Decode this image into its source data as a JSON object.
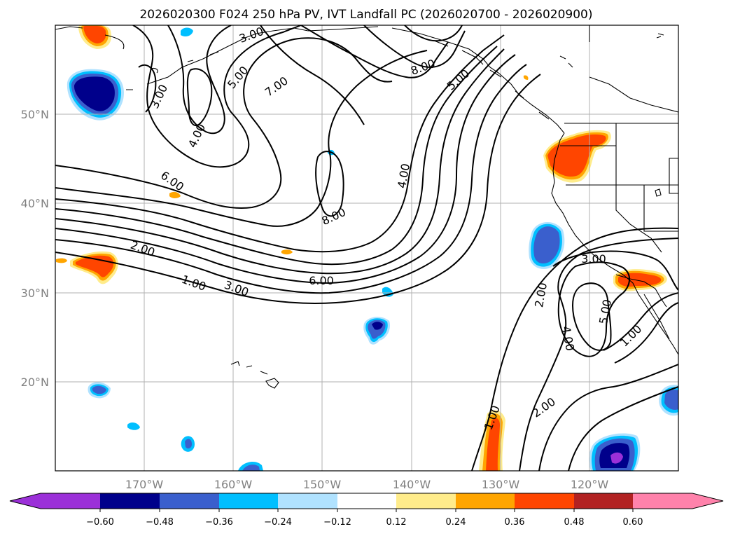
{
  "title": "2026020300 F024 250 hPa PV, IVT Landfall PC (2026020700 - 2026020900)",
  "map": {
    "projection": "PlateCarree",
    "lon_range": [
      -180,
      -110
    ],
    "lat_range": [
      10,
      60
    ],
    "gridlines": true,
    "lat_labels": [
      "50°N",
      "40°N",
      "30°N",
      "20°N"
    ],
    "lon_labels": [
      "170°W",
      "160°W",
      "150°W",
      "140°W",
      "130°W",
      "120°W"
    ]
  },
  "contour_labels": [
    "3.00",
    "5.00",
    "7.00",
    "8.00",
    "5.00",
    "3.00",
    "4.00",
    "6.00",
    "4.00",
    "8.00",
    "2.00",
    "1.00",
    "3.00",
    "6.00",
    "3.00",
    "2.00",
    "5.00",
    "4.00",
    "1.00",
    "1.00",
    "2.00"
  ],
  "colorbar": {
    "ticks": [
      "−0.60",
      "−0.48",
      "−0.36",
      "−0.24",
      "−0.12",
      "0.12",
      "0.24",
      "0.36",
      "0.48",
      "0.60"
    ],
    "colors": [
      "#9b30d8",
      "#00008b",
      "#3a5fcd",
      "#00bfff",
      "#b0e2ff",
      "#ffffff",
      "#ffec8b",
      "#ffa500",
      "#ff4500",
      "#b22222",
      "#ff82ab"
    ],
    "extend": "both"
  },
  "chart_data": {
    "type": "heatmap",
    "title": "2026020300 F024 250 hPa PV, IVT Landfall PC (2026020700 - 2026020900)",
    "xlabel": "",
    "ylabel": "",
    "xlim": [
      -180,
      -110
    ],
    "ylim": [
      10,
      60
    ],
    "levels": [
      -0.6,
      -0.48,
      -0.36,
      -0.24,
      -0.12,
      0.12,
      0.24,
      0.36,
      0.48,
      0.6
    ],
    "contour_levels": [
      1,
      2,
      3,
      4,
      5,
      6,
      7,
      8
    ],
    "positive_features": [
      {
        "lon": -175.5,
        "lat": 59,
        "peak": 0.36
      },
      {
        "lon": -122,
        "lat": 44.5,
        "peak": 0.36
      },
      {
        "lon": -117,
        "lat": 31.5,
        "peak": 0.36
      },
      {
        "lon": -174,
        "lat": 32.5,
        "peak": 0.36
      },
      {
        "lon": -129,
        "lat": 13,
        "peak": 0.36
      }
    ],
    "negative_features": [
      {
        "lon": -175.5,
        "lat": 52.5,
        "peak": -0.6
      },
      {
        "lon": -124.5,
        "lat": 36,
        "peak": -0.36
      },
      {
        "lon": -144,
        "lat": 25,
        "peak": -0.48
      },
      {
        "lon": -117.5,
        "lat": 12,
        "peak": -0.6
      },
      {
        "lon": -110,
        "lat": 17,
        "peak": -0.36
      }
    ]
  }
}
